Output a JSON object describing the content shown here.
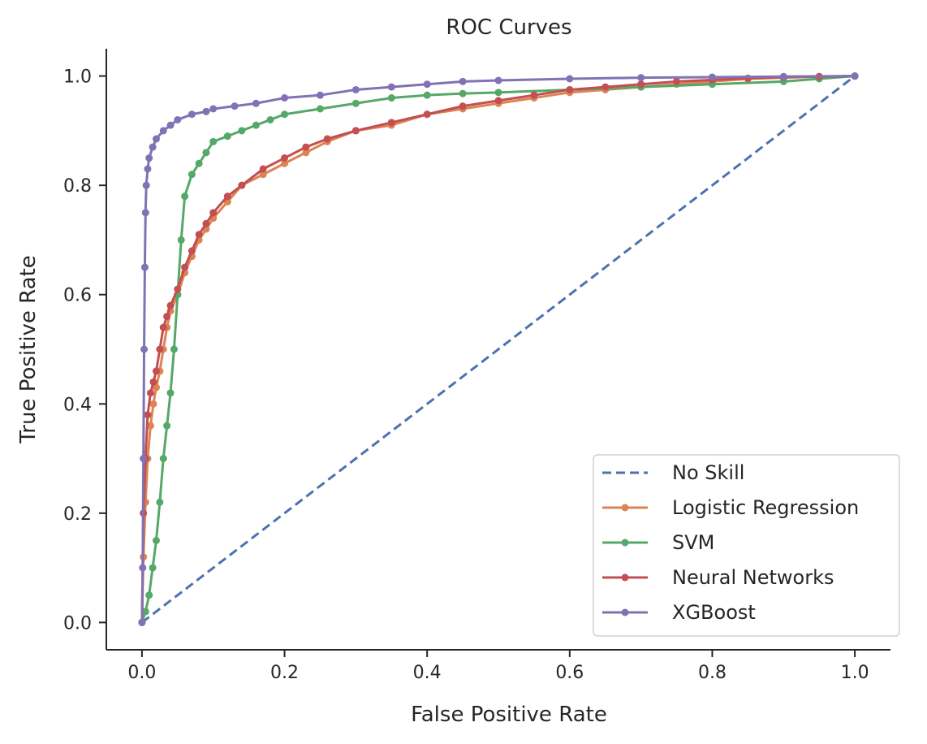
{
  "chart_data": {
    "type": "line",
    "title": "ROC Curves",
    "xlabel": "False Positive Rate",
    "ylabel": "True Positive Rate",
    "xlim": [
      -0.05,
      1.05
    ],
    "ylim": [
      -0.05,
      1.05
    ],
    "xticks": [
      "0.0",
      "0.2",
      "0.4",
      "0.6",
      "0.8",
      "1.0"
    ],
    "yticks": [
      "0.0",
      "0.2",
      "0.4",
      "0.6",
      "0.8",
      "1.0"
    ],
    "grid": false,
    "legend_position": "lower-right",
    "series": [
      {
        "name": "No Skill",
        "color": "#4c72b0",
        "style": "dashed",
        "markers": false,
        "points": [
          [
            0,
            0
          ],
          [
            1,
            1
          ]
        ]
      },
      {
        "name": "Logistic Regression",
        "color": "#dd8452",
        "style": "solid",
        "markers": true,
        "points": [
          [
            0,
            0
          ],
          [
            0.002,
            0.12
          ],
          [
            0.005,
            0.22
          ],
          [
            0.008,
            0.3
          ],
          [
            0.012,
            0.36
          ],
          [
            0.016,
            0.4
          ],
          [
            0.02,
            0.43
          ],
          [
            0.025,
            0.46
          ],
          [
            0.03,
            0.5
          ],
          [
            0.035,
            0.54
          ],
          [
            0.04,
            0.57
          ],
          [
            0.05,
            0.6
          ],
          [
            0.06,
            0.64
          ],
          [
            0.07,
            0.67
          ],
          [
            0.08,
            0.7
          ],
          [
            0.09,
            0.72
          ],
          [
            0.1,
            0.74
          ],
          [
            0.12,
            0.77
          ],
          [
            0.14,
            0.8
          ],
          [
            0.17,
            0.82
          ],
          [
            0.2,
            0.84
          ],
          [
            0.23,
            0.86
          ],
          [
            0.26,
            0.88
          ],
          [
            0.3,
            0.9
          ],
          [
            0.35,
            0.91
          ],
          [
            0.4,
            0.93
          ],
          [
            0.45,
            0.94
          ],
          [
            0.5,
            0.95
          ],
          [
            0.55,
            0.96
          ],
          [
            0.6,
            0.97
          ],
          [
            0.65,
            0.975
          ],
          [
            0.7,
            0.98
          ],
          [
            0.75,
            0.985
          ],
          [
            0.8,
            0.99
          ],
          [
            0.85,
            0.995
          ],
          [
            0.9,
            0.997
          ],
          [
            0.95,
            0.999
          ],
          [
            1,
            1
          ]
        ]
      },
      {
        "name": "SVM",
        "color": "#55a868",
        "style": "solid",
        "markers": true,
        "points": [
          [
            0,
            0
          ],
          [
            0.005,
            0.02
          ],
          [
            0.01,
            0.05
          ],
          [
            0.015,
            0.1
          ],
          [
            0.02,
            0.15
          ],
          [
            0.025,
            0.22
          ],
          [
            0.03,
            0.3
          ],
          [
            0.035,
            0.36
          ],
          [
            0.04,
            0.42
          ],
          [
            0.045,
            0.5
          ],
          [
            0.05,
            0.6
          ],
          [
            0.055,
            0.7
          ],
          [
            0.06,
            0.78
          ],
          [
            0.07,
            0.82
          ],
          [
            0.08,
            0.84
          ],
          [
            0.09,
            0.86
          ],
          [
            0.1,
            0.88
          ],
          [
            0.12,
            0.89
          ],
          [
            0.14,
            0.9
          ],
          [
            0.16,
            0.91
          ],
          [
            0.18,
            0.92
          ],
          [
            0.2,
            0.93
          ],
          [
            0.25,
            0.94
          ],
          [
            0.3,
            0.95
          ],
          [
            0.35,
            0.96
          ],
          [
            0.4,
            0.965
          ],
          [
            0.45,
            0.968
          ],
          [
            0.5,
            0.97
          ],
          [
            0.6,
            0.975
          ],
          [
            0.7,
            0.98
          ],
          [
            0.8,
            0.985
          ],
          [
            0.9,
            0.99
          ],
          [
            0.95,
            0.995
          ],
          [
            1,
            1
          ]
        ]
      },
      {
        "name": "Neural Networks",
        "color": "#c44e52",
        "style": "solid",
        "markers": true,
        "points": [
          [
            0,
            0
          ],
          [
            0.002,
            0.2
          ],
          [
            0.005,
            0.3
          ],
          [
            0.008,
            0.38
          ],
          [
            0.012,
            0.42
          ],
          [
            0.016,
            0.44
          ],
          [
            0.02,
            0.46
          ],
          [
            0.025,
            0.5
          ],
          [
            0.03,
            0.54
          ],
          [
            0.035,
            0.56
          ],
          [
            0.04,
            0.58
          ],
          [
            0.05,
            0.61
          ],
          [
            0.06,
            0.65
          ],
          [
            0.07,
            0.68
          ],
          [
            0.08,
            0.71
          ],
          [
            0.09,
            0.73
          ],
          [
            0.1,
            0.75
          ],
          [
            0.12,
            0.78
          ],
          [
            0.14,
            0.8
          ],
          [
            0.17,
            0.83
          ],
          [
            0.2,
            0.85
          ],
          [
            0.23,
            0.87
          ],
          [
            0.26,
            0.885
          ],
          [
            0.3,
            0.9
          ],
          [
            0.35,
            0.915
          ],
          [
            0.4,
            0.93
          ],
          [
            0.45,
            0.945
          ],
          [
            0.5,
            0.955
          ],
          [
            0.55,
            0.965
          ],
          [
            0.6,
            0.975
          ],
          [
            0.65,
            0.98
          ],
          [
            0.7,
            0.985
          ],
          [
            0.75,
            0.99
          ],
          [
            0.8,
            0.993
          ],
          [
            0.85,
            0.996
          ],
          [
            0.9,
            0.998
          ],
          [
            0.95,
            0.999
          ],
          [
            1,
            1
          ]
        ]
      },
      {
        "name": "XGBoost",
        "color": "#8172b3",
        "style": "solid",
        "markers": true,
        "points": [
          [
            0,
            0
          ],
          [
            0.001,
            0.1
          ],
          [
            0.002,
            0.3
          ],
          [
            0.003,
            0.5
          ],
          [
            0.004,
            0.65
          ],
          [
            0.005,
            0.75
          ],
          [
            0.006,
            0.8
          ],
          [
            0.008,
            0.83
          ],
          [
            0.01,
            0.85
          ],
          [
            0.015,
            0.87
          ],
          [
            0.02,
            0.885
          ],
          [
            0.03,
            0.9
          ],
          [
            0.04,
            0.91
          ],
          [
            0.05,
            0.92
          ],
          [
            0.07,
            0.93
          ],
          [
            0.09,
            0.935
          ],
          [
            0.1,
            0.94
          ],
          [
            0.13,
            0.945
          ],
          [
            0.16,
            0.95
          ],
          [
            0.2,
            0.96
          ],
          [
            0.25,
            0.965
          ],
          [
            0.3,
            0.975
          ],
          [
            0.35,
            0.98
          ],
          [
            0.4,
            0.985
          ],
          [
            0.45,
            0.99
          ],
          [
            0.5,
            0.992
          ],
          [
            0.6,
            0.995
          ],
          [
            0.7,
            0.997
          ],
          [
            0.8,
            0.998
          ],
          [
            0.9,
            0.999
          ],
          [
            1,
            1
          ]
        ]
      }
    ]
  }
}
